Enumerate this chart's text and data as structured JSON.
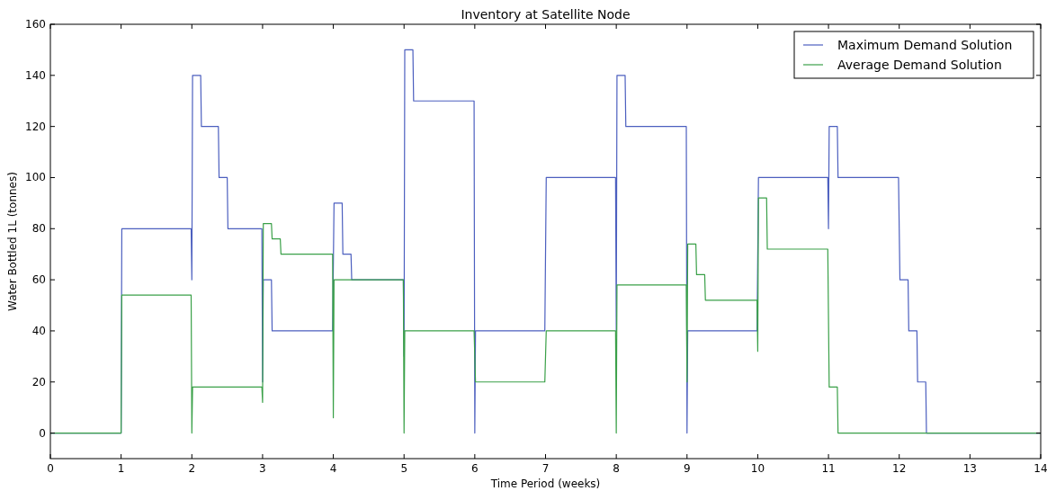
{
  "chart_data": {
    "type": "line",
    "title": "Inventory at Satellite Node",
    "xlabel": "Time Period (weeks)",
    "ylabel": "Water Bottled 1L (tonnes)",
    "xlim": [
      0,
      14
    ],
    "xticks": [
      0,
      1,
      2,
      3,
      4,
      5,
      6,
      7,
      8,
      9,
      10,
      11,
      12,
      13,
      14
    ],
    "ylim": [
      -10,
      160
    ],
    "yticks": [
      0,
      20,
      40,
      60,
      80,
      100,
      120,
      140,
      160
    ],
    "legend": "top right",
    "grid": false,
    "series": [
      {
        "name": "Maximum Demand Solution",
        "color": "#4c5fbf",
        "x": [
          0,
          1,
          1.01,
          1.99,
          2,
          2.01,
          2.125,
          2.135,
          2.375,
          2.385,
          2.5,
          2.51,
          2.99,
          3,
          3.01,
          3.125,
          3.135,
          3.99,
          4.01,
          4.125,
          4.135,
          4.25,
          4.26,
          4.99,
          5,
          5.01,
          5.125,
          5.135,
          5.99,
          6,
          6.01,
          6.99,
          7.01,
          7.99,
          8,
          8.01,
          8.125,
          8.135,
          8.99,
          9,
          9.01,
          9.99,
          10.01,
          10.99,
          11,
          11.01,
          11.125,
          11.135,
          11.99,
          12.01,
          12.125,
          12.135,
          12.25,
          12.26,
          12.375,
          12.385,
          14
        ],
        "values": [
          0,
          0,
          80,
          80,
          60,
          140,
          140,
          120,
          120,
          100,
          100,
          80,
          80,
          20,
          60,
          60,
          40,
          40,
          90,
          90,
          70,
          70,
          60,
          60,
          30,
          150,
          150,
          130,
          130,
          0,
          40,
          40,
          100,
          100,
          40,
          140,
          140,
          120,
          120,
          0,
          40,
          40,
          100,
          100,
          80,
          120,
          120,
          100,
          100,
          60,
          60,
          40,
          40,
          20,
          20,
          0,
          0
        ]
      },
      {
        "name": "Average Demand Solution",
        "color": "#3aa048",
        "x": [
          0,
          1,
          1.01,
          1.99,
          2,
          2.01,
          2.99,
          3,
          3.01,
          3.125,
          3.135,
          3.25,
          3.26,
          3.99,
          4,
          4.01,
          4.99,
          5,
          5.01,
          5.99,
          6.01,
          6.99,
          7.01,
          7.99,
          8,
          8.01,
          8.99,
          9,
          9.01,
          9.125,
          9.135,
          9.25,
          9.26,
          9.99,
          10,
          10.01,
          10.125,
          10.135,
          10.99,
          11.01,
          11.125,
          11.135,
          14
        ],
        "values": [
          0,
          0,
          54,
          54,
          0,
          18,
          18,
          12,
          82,
          82,
          76,
          76,
          70,
          70,
          6,
          60,
          60,
          0,
          40,
          40,
          20,
          20,
          40,
          40,
          0,
          58,
          58,
          20,
          74,
          74,
          62,
          62,
          52,
          52,
          32,
          92,
          92,
          72,
          72,
          18,
          18,
          0,
          0
        ]
      }
    ]
  }
}
